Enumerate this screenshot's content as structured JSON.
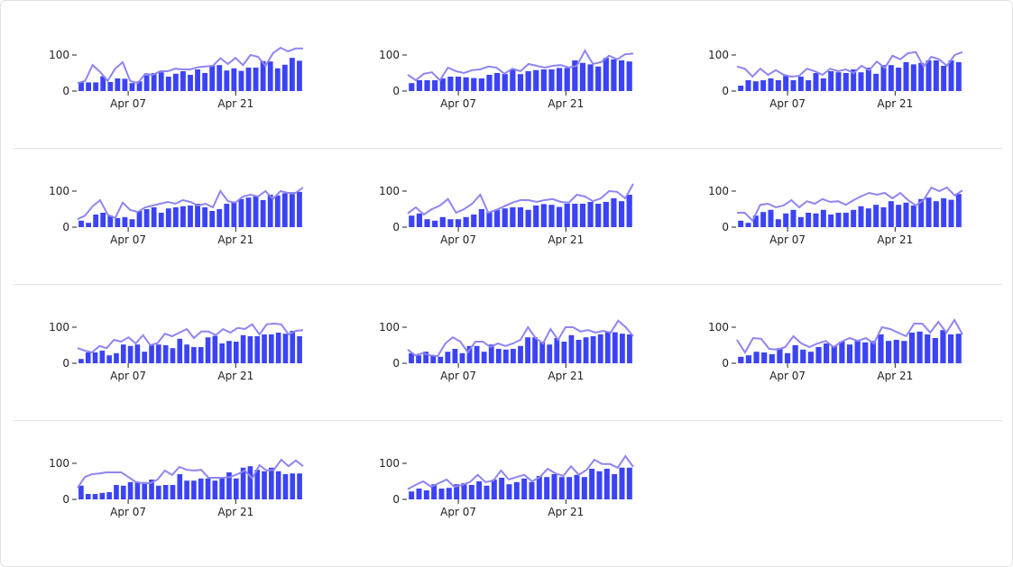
{
  "colors": {
    "bar": "#3b43f5",
    "line": "#8f85f2",
    "axis": "#222222",
    "divider": "#e5e5e5"
  },
  "chart_data": [
    {
      "type": "bar",
      "x_ticks": [
        "Apr 07",
        "Apr 21"
      ],
      "y_ticks": [
        "0",
        "100"
      ],
      "ylim": [
        0,
        130
      ],
      "bars": [
        25,
        24,
        24,
        41,
        25,
        35,
        34,
        22,
        27,
        44,
        50,
        52,
        40,
        48,
        55,
        45,
        60,
        50,
        70,
        72,
        57,
        63,
        56,
        65,
        65,
        83,
        82,
        63,
        73,
        92,
        84
      ],
      "line": [
        22,
        28,
        72,
        53,
        28,
        62,
        80,
        28,
        22,
        48,
        45,
        55,
        55,
        62,
        60,
        60,
        66,
        68,
        70,
        91,
        75,
        92,
        72,
        100,
        95,
        70,
        105,
        120,
        110,
        118,
        118
      ]
    },
    {
      "type": "bar",
      "x_ticks": [
        "Apr 07",
        "Apr 21"
      ],
      "y_ticks": [
        "0",
        "100"
      ],
      "ylim": [
        0,
        130
      ],
      "bars": [
        22,
        30,
        30,
        30,
        35,
        40,
        40,
        38,
        36,
        35,
        45,
        50,
        47,
        60,
        47,
        55,
        58,
        60,
        60,
        64,
        64,
        85,
        78,
        74,
        68,
        92,
        88,
        85,
        82
      ],
      "line": [
        45,
        30,
        48,
        52,
        30,
        65,
        55,
        50,
        58,
        60,
        68,
        65,
        48,
        62,
        55,
        75,
        70,
        65,
        70,
        72,
        65,
        70,
        112,
        75,
        80,
        98,
        88,
        102,
        104
      ]
    },
    {
      "type": "bar",
      "x_ticks": [
        "Apr 07",
        "Apr 21"
      ],
      "y_ticks": [
        "0",
        "100"
      ],
      "ylim": [
        0,
        130
      ],
      "bars": [
        15,
        30,
        27,
        30,
        35,
        30,
        42,
        30,
        40,
        30,
        50,
        35,
        55,
        52,
        50,
        60,
        52,
        65,
        48,
        72,
        72,
        65,
        80,
        74,
        78,
        85,
        85,
        70,
        85,
        80
      ],
      "line": [
        68,
        62,
        40,
        62,
        45,
        58,
        45,
        40,
        42,
        62,
        55,
        45,
        62,
        55,
        60,
        50,
        70,
        58,
        82,
        64,
        98,
        88,
        105,
        108,
        68,
        95,
        88,
        70,
        100,
        108
      ]
    },
    {
      "type": "bar",
      "x_ticks": [
        "Apr 07",
        "Apr 21"
      ],
      "y_ticks": [
        "0",
        "100"
      ],
      "ylim": [
        0,
        130
      ],
      "bars": [
        18,
        12,
        35,
        40,
        32,
        25,
        28,
        22,
        45,
        50,
        55,
        40,
        52,
        55,
        58,
        60,
        65,
        55,
        45,
        50,
        65,
        70,
        78,
        82,
        85,
        75,
        90,
        88,
        94,
        92,
        98
      ],
      "line": [
        22,
        32,
        58,
        75,
        35,
        25,
        68,
        48,
        42,
        55,
        60,
        65,
        70,
        65,
        75,
        70,
        60,
        65,
        55,
        100,
        72,
        68,
        85,
        90,
        85,
        100,
        78,
        100,
        95,
        95,
        110
      ]
    },
    {
      "type": "bar",
      "x_ticks": [
        "Apr 07",
        "Apr 21"
      ],
      "y_ticks": [
        "0",
        "100"
      ],
      "ylim": [
        0,
        130
      ],
      "bars": [
        32,
        38,
        22,
        18,
        28,
        22,
        22,
        28,
        35,
        50,
        42,
        48,
        52,
        55,
        55,
        48,
        60,
        64,
        62,
        56,
        65,
        65,
        65,
        70,
        65,
        70,
        80,
        72,
        90
      ],
      "line": [
        38,
        55,
        35,
        50,
        60,
        78,
        40,
        50,
        65,
        90,
        40,
        48,
        58,
        68,
        75,
        75,
        70,
        75,
        78,
        70,
        68,
        90,
        85,
        72,
        80,
        100,
        98,
        80,
        120
      ]
    },
    {
      "type": "bar",
      "x_ticks": [
        "Apr 07",
        "Apr 21"
      ],
      "y_ticks": [
        "0",
        "100"
      ],
      "ylim": [
        0,
        130
      ],
      "bars": [
        18,
        12,
        32,
        42,
        48,
        22,
        38,
        48,
        28,
        40,
        38,
        48,
        35,
        40,
        40,
        48,
        58,
        52,
        62,
        55,
        72,
        62,
        68,
        60,
        78,
        82,
        72,
        80,
        76,
        92
      ],
      "line": [
        40,
        40,
        18,
        62,
        65,
        55,
        60,
        75,
        55,
        72,
        65,
        78,
        70,
        72,
        62,
        75,
        86,
        95,
        90,
        95,
        80,
        95,
        75,
        60,
        75,
        110,
        100,
        110,
        88,
        102
      ]
    },
    {
      "type": "bar",
      "x_ticks": [
        "Apr 07",
        "Apr 21"
      ],
      "y_ticks": [
        "0",
        "100"
      ],
      "ylim": [
        0,
        130
      ],
      "bars": [
        12,
        30,
        30,
        35,
        22,
        28,
        52,
        48,
        52,
        32,
        50,
        52,
        50,
        42,
        68,
        52,
        45,
        45,
        72,
        76,
        55,
        62,
        60,
        78,
        75,
        75,
        80,
        80,
        85,
        82,
        90,
        75
      ],
      "line": [
        42,
        35,
        30,
        48,
        42,
        65,
        60,
        72,
        55,
        78,
        50,
        56,
        82,
        75,
        85,
        95,
        70,
        88,
        88,
        78,
        95,
        85,
        98,
        95,
        108,
        80,
        108,
        110,
        108,
        80,
        90,
        92
      ]
    },
    {
      "type": "bar",
      "x_ticks": [
        "Apr 07",
        "Apr 21"
      ],
      "y_ticks": [
        "0",
        "100"
      ],
      "ylim": [
        0,
        130
      ],
      "bars": [
        28,
        22,
        32,
        22,
        18,
        32,
        40,
        28,
        48,
        48,
        32,
        52,
        40,
        38,
        40,
        48,
        72,
        72,
        60,
        52,
        70,
        60,
        78,
        65,
        72,
        75,
        80,
        88,
        86,
        82,
        80
      ],
      "line": [
        38,
        22,
        28,
        22,
        20,
        55,
        72,
        60,
        30,
        60,
        60,
        45,
        55,
        48,
        55,
        65,
        100,
        70,
        55,
        95,
        65,
        100,
        100,
        88,
        92,
        85,
        90,
        85,
        118,
        100,
        75
      ]
    },
    {
      "type": "bar",
      "x_ticks": [
        "Apr 07",
        "Apr 21"
      ],
      "y_ticks": [
        "0",
        "100"
      ],
      "ylim": [
        0,
        130
      ],
      "bars": [
        18,
        22,
        32,
        30,
        25,
        42,
        28,
        50,
        38,
        32,
        45,
        55,
        48,
        60,
        52,
        62,
        58,
        62,
        80,
        62,
        65,
        62,
        85,
        88,
        80,
        70,
        92,
        80,
        82
      ],
      "line": [
        65,
        30,
        70,
        68,
        40,
        38,
        45,
        75,
        55,
        45,
        55,
        62,
        45,
        60,
        70,
        62,
        70,
        55,
        100,
        95,
        85,
        75,
        110,
        110,
        85,
        115,
        85,
        120,
        80
      ]
    },
    {
      "type": "bar",
      "x_ticks": [
        "Apr 07",
        "Apr 21"
      ],
      "y_ticks": [
        "0",
        "100"
      ],
      "ylim": [
        0,
        130
      ],
      "bars": [
        38,
        15,
        15,
        18,
        20,
        40,
        38,
        48,
        48,
        48,
        55,
        38,
        40,
        40,
        70,
        52,
        52,
        58,
        58,
        52,
        62,
        75,
        58,
        88,
        92,
        82,
        78,
        88,
        78,
        70,
        72,
        72
      ],
      "line": [
        32,
        62,
        70,
        72,
        75,
        75,
        75,
        62,
        48,
        45,
        45,
        55,
        80,
        68,
        90,
        82,
        80,
        82,
        60,
        60,
        60,
        62,
        70,
        80,
        58,
        95,
        80,
        82,
        110,
        92,
        108,
        92
      ]
    },
    {
      "type": "bar",
      "x_ticks": [
        "Apr 07",
        "Apr 21"
      ],
      "y_ticks": [
        "0",
        "100"
      ],
      "ylim": [
        0,
        130
      ],
      "bars": [
        22,
        30,
        25,
        42,
        30,
        32,
        42,
        45,
        40,
        50,
        38,
        55,
        60,
        42,
        48,
        58,
        48,
        65,
        62,
        70,
        62,
        62,
        68,
        62,
        85,
        78,
        85,
        70,
        88,
        88
      ],
      "line": [
        28,
        40,
        50,
        35,
        45,
        55,
        35,
        40,
        48,
        68,
        48,
        52,
        80,
        55,
        62,
        68,
        50,
        62,
        85,
        72,
        65,
        92,
        68,
        82,
        110,
        98,
        98,
        88,
        120,
        90
      ]
    }
  ]
}
